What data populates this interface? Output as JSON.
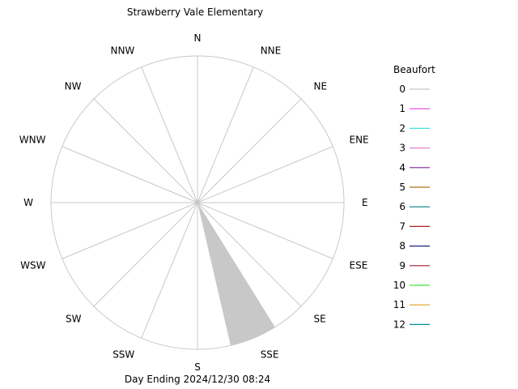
{
  "chart_data": {
    "type": "wind-rose",
    "title": "Strawberry Vale Elementary",
    "footer": "Day Ending 2024/12/30 08:24",
    "directions": [
      "N",
      "NNE",
      "NE",
      "ENE",
      "E",
      "ESE",
      "SE",
      "SSE",
      "S",
      "SSW",
      "SW",
      "WSW",
      "W",
      "WNW",
      "NW",
      "NNW"
    ],
    "legend": {
      "title": "Beaufort",
      "placement": "right",
      "items": [
        {
          "label": "0",
          "color": "#c8c8c8"
        },
        {
          "label": "1",
          "color": "#e040e0"
        },
        {
          "label": "2",
          "color": "#40e0e0"
        },
        {
          "label": "3",
          "color": "#e080c0"
        },
        {
          "label": "4",
          "color": "#8020a0"
        },
        {
          "label": "5",
          "color": "#b07020"
        },
        {
          "label": "6",
          "color": "#008080"
        },
        {
          "label": "7",
          "color": "#b02020"
        },
        {
          "label": "8",
          "color": "#202080"
        },
        {
          "label": "9",
          "color": "#a01830"
        },
        {
          "label": "10",
          "color": "#40e040"
        },
        {
          "label": "11",
          "color": "#e0a020"
        },
        {
          "label": "12",
          "color": "#0090a0"
        }
      ]
    },
    "petals": [
      {
        "direction": "SSE",
        "beaufort": "0",
        "fraction": 1.0
      }
    ],
    "grid": true
  }
}
